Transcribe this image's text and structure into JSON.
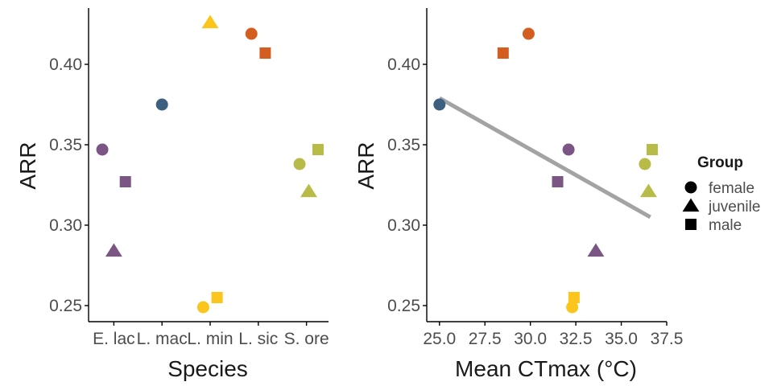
{
  "chart_data": [
    {
      "type": "scatter",
      "x_type": "categorical",
      "categories": [
        "E. lac",
        "L. mac",
        "L. min",
        "L. sic",
        "S. ore"
      ],
      "xlabel": "Species",
      "ylabel": "ARR",
      "ylim": [
        0.24,
        0.435
      ],
      "yticks": [
        "0.25",
        "0.30",
        "0.35",
        "0.40"
      ],
      "ytick_values": [
        0.25,
        0.3,
        0.35,
        0.4
      ],
      "points": [
        {
          "species": "E. lac",
          "group": "female",
          "offset": -0.25,
          "y": 0.347,
          "color": "#7b5584"
        },
        {
          "species": "E. lac",
          "group": "juvenile",
          "offset": 0.0,
          "y": 0.284,
          "color": "#7b5584"
        },
        {
          "species": "E. lac",
          "group": "male",
          "offset": 0.25,
          "y": 0.327,
          "color": "#7b5584"
        },
        {
          "species": "L. mac",
          "group": "female",
          "offset": 0.0,
          "y": 0.375,
          "color": "#3d5f80"
        },
        {
          "species": "L. min",
          "group": "female",
          "offset": -0.15,
          "y": 0.249,
          "color": "#fbc51c"
        },
        {
          "species": "L. min",
          "group": "juvenile",
          "offset": 0.0,
          "y": 0.426,
          "color": "#fbc51c"
        },
        {
          "species": "L. min",
          "group": "male",
          "offset": 0.15,
          "y": 0.255,
          "color": "#fbc51c"
        },
        {
          "species": "L. sic",
          "group": "female",
          "offset": -0.15,
          "y": 0.419,
          "color": "#d45e1f"
        },
        {
          "species": "L. sic",
          "group": "male",
          "offset": 0.15,
          "y": 0.407,
          "color": "#d45e1f"
        },
        {
          "species": "S. ore",
          "group": "female",
          "offset": -0.15,
          "y": 0.338,
          "color": "#b8bb48"
        },
        {
          "species": "S. ore",
          "group": "juvenile",
          "offset": 0.05,
          "y": 0.321,
          "color": "#b8bb48"
        },
        {
          "species": "S. ore",
          "group": "male",
          "offset": 0.25,
          "y": 0.347,
          "color": "#b8bb48"
        }
      ]
    },
    {
      "type": "scatter",
      "xlabel": "Mean CTmax (°C)",
      "ylabel": "ARR",
      "xlim": [
        24.3,
        37.5
      ],
      "ylim": [
        0.24,
        0.435
      ],
      "xticks": [
        "25.0",
        "27.5",
        "30.0",
        "32.5",
        "35.0",
        "37.5"
      ],
      "xtick_values": [
        25.0,
        27.5,
        30.0,
        32.5,
        35.0,
        37.5
      ],
      "yticks": [
        "0.25",
        "0.30",
        "0.35",
        "0.40"
      ],
      "ytick_values": [
        0.25,
        0.3,
        0.35,
        0.4
      ],
      "points": [
        {
          "group": "female",
          "x": 25.0,
          "y": 0.375,
          "color": "#3d5f80"
        },
        {
          "group": "female",
          "x": 29.9,
          "y": 0.419,
          "color": "#d45e1f"
        },
        {
          "group": "male",
          "x": 28.5,
          "y": 0.407,
          "color": "#d45e1f"
        },
        {
          "group": "female",
          "x": 32.1,
          "y": 0.347,
          "color": "#7b5584"
        },
        {
          "group": "male",
          "x": 31.5,
          "y": 0.327,
          "color": "#7b5584"
        },
        {
          "group": "juvenile",
          "x": 33.6,
          "y": 0.284,
          "color": "#7b5584"
        },
        {
          "group": "female",
          "x": 32.3,
          "y": 0.249,
          "color": "#fbc51c"
        },
        {
          "group": "male",
          "x": 32.4,
          "y": 0.255,
          "color": "#fbc51c"
        },
        {
          "group": "female",
          "x": 36.3,
          "y": 0.338,
          "color": "#b8bb48"
        },
        {
          "group": "juvenile",
          "x": 36.5,
          "y": 0.321,
          "color": "#b8bb48"
        },
        {
          "group": "male",
          "x": 36.7,
          "y": 0.347,
          "color": "#b8bb48"
        }
      ],
      "trend_line": {
        "x": [
          25.0,
          36.6
        ],
        "y": [
          0.379,
          0.305
        ],
        "color": "#a3a3a3"
      }
    }
  ],
  "legend": {
    "title": "Group",
    "entries": [
      {
        "label": "female",
        "shape": "circle"
      },
      {
        "label": "juvenile",
        "shape": "triangle"
      },
      {
        "label": "male",
        "shape": "square"
      }
    ]
  }
}
